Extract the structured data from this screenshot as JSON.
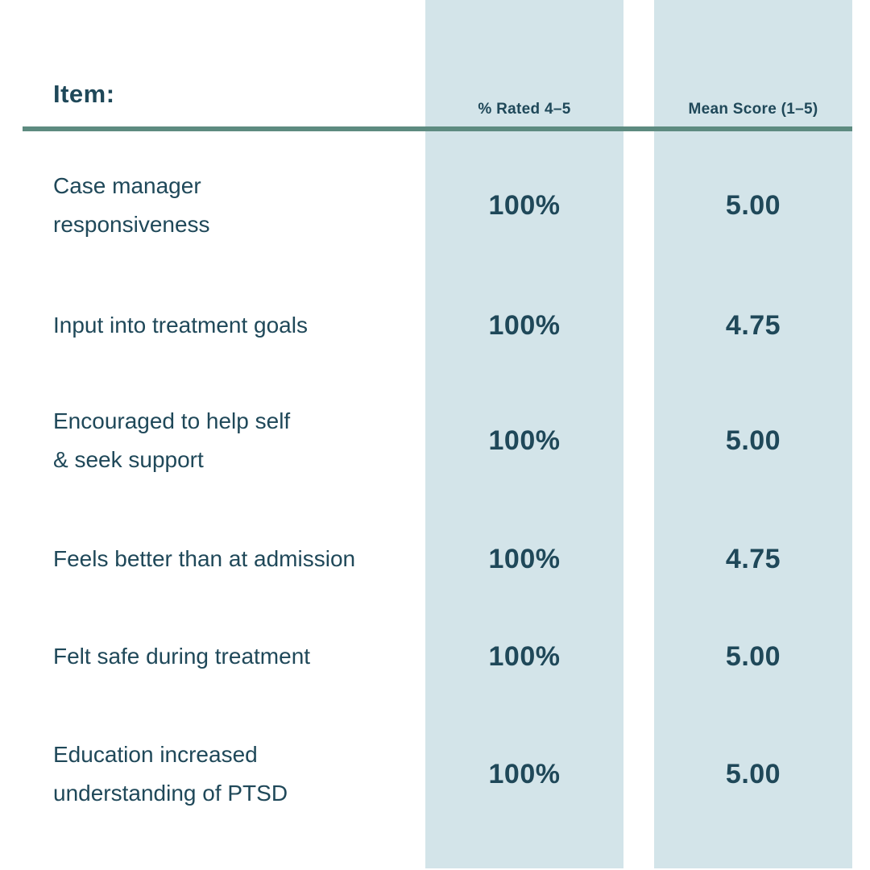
{
  "table": {
    "item_header": "Item:",
    "columns": {
      "pct_rated": "% Rated 4–5",
      "mean_score": "Mean Score (1–5)"
    },
    "rows": [
      {
        "item": "Case manager\nresponsiveness",
        "pct_rated": "100%",
        "mean_score": "5.00"
      },
      {
        "item": "Input into treatment goals",
        "pct_rated": "100%",
        "mean_score": "4.75"
      },
      {
        "item": "Encouraged to help self\n& seek support",
        "pct_rated": "100%",
        "mean_score": "5.00"
      },
      {
        "item": "Feels better than at admission",
        "pct_rated": "100%",
        "mean_score": "4.75"
      },
      {
        "item": "Felt safe during treatment",
        "pct_rated": "100%",
        "mean_score": "5.00"
      },
      {
        "item": "Education increased\nunderstanding of PTSD",
        "pct_rated": "100%",
        "mean_score": "5.00"
      }
    ]
  },
  "colors": {
    "text_dark": "#1f4859",
    "band_blue": "#d3e4e9",
    "divider_green": "#5d8b80",
    "background": "#ffffff"
  }
}
